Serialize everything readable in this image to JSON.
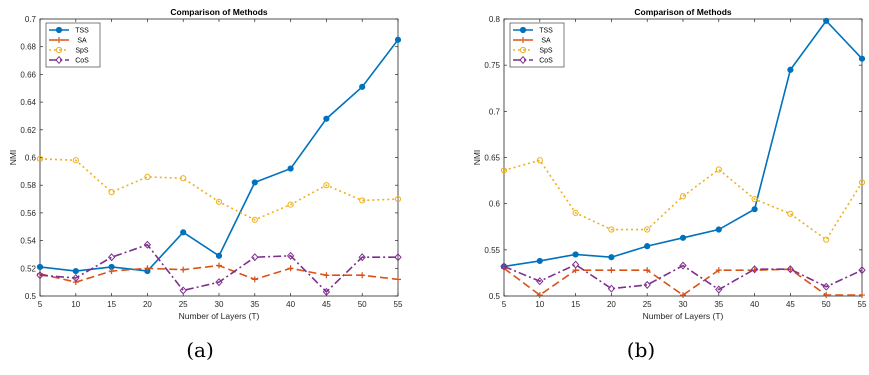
{
  "chart_data": [
    {
      "type": "line",
      "title": "Comparison of Methods",
      "xlabel": "Number of Layers (T)",
      "ylabel": "NMI",
      "x": [
        5,
        10,
        15,
        20,
        25,
        30,
        35,
        40,
        45,
        50,
        55
      ],
      "xlim": [
        5,
        55
      ],
      "ylim": [
        0.5,
        0.7
      ],
      "yticks": [
        0.5,
        0.52,
        0.54,
        0.56,
        0.58,
        0.6,
        0.62,
        0.64,
        0.66,
        0.68,
        0.7
      ],
      "ytick_labels": [
        "0.5",
        "0.52",
        "0.54",
        "0.56",
        "0.58",
        "0.6",
        "0.62",
        "0.64",
        "0.66",
        "0.68",
        "0.7"
      ],
      "grid": false,
      "legend_position": "top-left",
      "series": [
        {
          "name": "TSS",
          "color": "#0072BD",
          "dash": "",
          "marker": "dot",
          "values": [
            0.521,
            0.518,
            0.521,
            0.518,
            0.546,
            0.529,
            0.582,
            0.592,
            0.628,
            0.651,
            0.685
          ]
        },
        {
          "name": "SA",
          "color": "#D95319",
          "dash": "8,4",
          "marker": "plus",
          "values": [
            0.516,
            0.51,
            0.518,
            0.52,
            0.519,
            0.522,
            0.512,
            0.52,
            0.515,
            0.515,
            0.512
          ]
        },
        {
          "name": "SpS",
          "color": "#EDB120",
          "dash": "2,3",
          "marker": "circle",
          "values": [
            0.599,
            0.598,
            0.575,
            0.586,
            0.585,
            0.568,
            0.555,
            0.566,
            0.58,
            0.569,
            0.57
          ]
        },
        {
          "name": "CoS",
          "color": "#7E2F8E",
          "dash": "8,3,2,3",
          "marker": "diamond",
          "values": [
            0.515,
            0.513,
            0.528,
            0.537,
            0.504,
            0.51,
            0.528,
            0.529,
            0.503,
            0.528,
            0.528
          ]
        }
      ]
    },
    {
      "type": "line",
      "title": "Comparison of Methods",
      "xlabel": "Number of Layers (T)",
      "ylabel": "NMI",
      "x": [
        5,
        10,
        15,
        20,
        25,
        30,
        35,
        40,
        45,
        50,
        55
      ],
      "xlim": [
        5,
        55
      ],
      "ylim": [
        0.5,
        0.8
      ],
      "yticks": [
        0.5,
        0.55,
        0.6,
        0.65,
        0.7,
        0.75,
        0.8
      ],
      "ytick_labels": [
        "0.5",
        "0.55",
        "0.6",
        "0.65",
        "0.7",
        "0.75",
        "0.8"
      ],
      "grid": false,
      "legend_position": "top-left",
      "series": [
        {
          "name": "TSS",
          "color": "#0072BD",
          "dash": "",
          "marker": "dot",
          "values": [
            0.532,
            0.538,
            0.545,
            0.542,
            0.554,
            0.563,
            0.572,
            0.594,
            0.745,
            0.798,
            0.757
          ]
        },
        {
          "name": "SA",
          "color": "#D95319",
          "dash": "8,4",
          "marker": "plus",
          "values": [
            0.53,
            0.501,
            0.528,
            0.528,
            0.528,
            0.501,
            0.528,
            0.528,
            0.529,
            0.501,
            0.501
          ]
        },
        {
          "name": "SpS",
          "color": "#EDB120",
          "dash": "2,3",
          "marker": "circle",
          "values": [
            0.636,
            0.647,
            0.59,
            0.572,
            0.572,
            0.608,
            0.637,
            0.605,
            0.589,
            0.561,
            0.623
          ]
        },
        {
          "name": "CoS",
          "color": "#7E2F8E",
          "dash": "8,3,2,3",
          "marker": "diamond",
          "values": [
            0.532,
            0.516,
            0.534,
            0.508,
            0.512,
            0.533,
            0.507,
            0.529,
            0.529,
            0.51,
            0.528
          ]
        }
      ]
    }
  ],
  "captions": [
    "(a)",
    "(b)"
  ]
}
